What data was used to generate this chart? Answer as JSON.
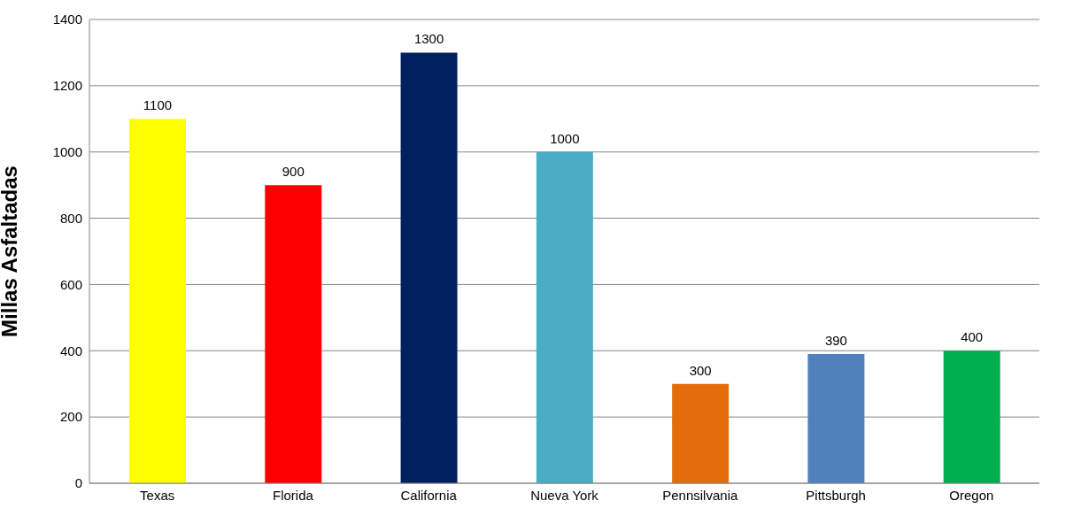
{
  "chart_data": {
    "type": "bar",
    "ylabel": "Millas Asfaltadas",
    "categories": [
      "Texas",
      "Florida",
      "California",
      "Nueva York",
      "Pennsilvania",
      "Pittsburgh",
      "Oregon"
    ],
    "values": [
      1100,
      900,
      1300,
      1000,
      300,
      390,
      400
    ],
    "colors": [
      "#ffff00",
      "#ff0000",
      "#002060",
      "#4bacc6",
      "#e46c0a",
      "#4f81bd",
      "#00b050"
    ],
    "ylim": [
      0,
      1400
    ],
    "yticks": [
      0,
      200,
      400,
      600,
      800,
      1000,
      1200,
      1400
    ],
    "grid": "y",
    "data_labels": true,
    "legend": false
  }
}
